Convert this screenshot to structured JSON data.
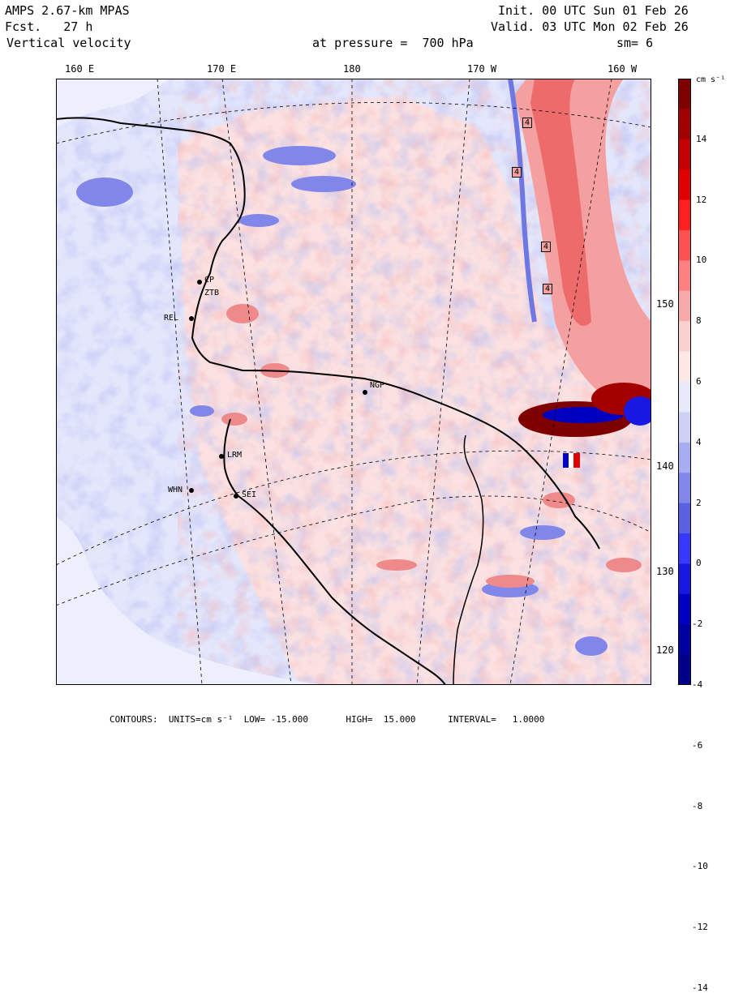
{
  "header": {
    "model": "AMPS 2.67-km MPAS",
    "forecast": "Fcst.   27 h",
    "field": "Vertical velocity",
    "init": "Init. 00 UTC Sun 01 Feb 26",
    "valid": "Valid. 03 UTC Mon 02 Feb 26",
    "pressure": "at pressure =  700 hPa",
    "smoothing": "sm= 6"
  },
  "lon_labels": [
    "160 E",
    "170 E",
    "180",
    "170 W",
    "160 W"
  ],
  "lat_labels": [
    "150 W",
    "140 W",
    "130 W",
    "120 W"
  ],
  "colorbar": {
    "units": "cm s⁻¹",
    "ticks": [
      "14",
      "12",
      "10",
      "8",
      "6",
      "4",
      "2",
      "0",
      "-2",
      "-4",
      "-6",
      "-8",
      "-10",
      "-12",
      "-14"
    ],
    "colors": [
      "#7f0000",
      "#a30000",
      "#c40000",
      "#e00000",
      "#ff2020",
      "#ff5050",
      "#ff8080",
      "#f7aaaa",
      "#fbd0d0",
      "#fde8e8",
      "#e8e8fb",
      "#cdd2f5",
      "#a6aef0",
      "#8087e8",
      "#5a60e0",
      "#3838ff",
      "#1818e0",
      "#0000c0",
      "#0000a0",
      "#000088"
    ]
  },
  "stations": [
    {
      "id": "cp",
      "label": "CP"
    },
    {
      "id": "ztb",
      "label": "ZTB"
    },
    {
      "id": "rel",
      "label": "REL"
    },
    {
      "id": "lrm",
      "label": "LRM"
    },
    {
      "id": "whn",
      "label": "WHN"
    },
    {
      "id": "sei",
      "label": "SEI"
    },
    {
      "id": "ngp",
      "label": "NGP"
    }
  ],
  "contour_labels": [
    "4",
    "4",
    "4",
    "4"
  ],
  "footer": {
    "contours": "CONTOURS:  UNITS=cm s⁻¹  LOW= -15.000       HIGH=  15.000      INTERVAL=   1.0000"
  },
  "legend_colors": {
    "background_pale_blue": "#e4e6fb",
    "pale_pink": "#fbdcdc",
    "upward_red": "#ee6b6b",
    "downward_blue": "#6f78e2"
  }
}
